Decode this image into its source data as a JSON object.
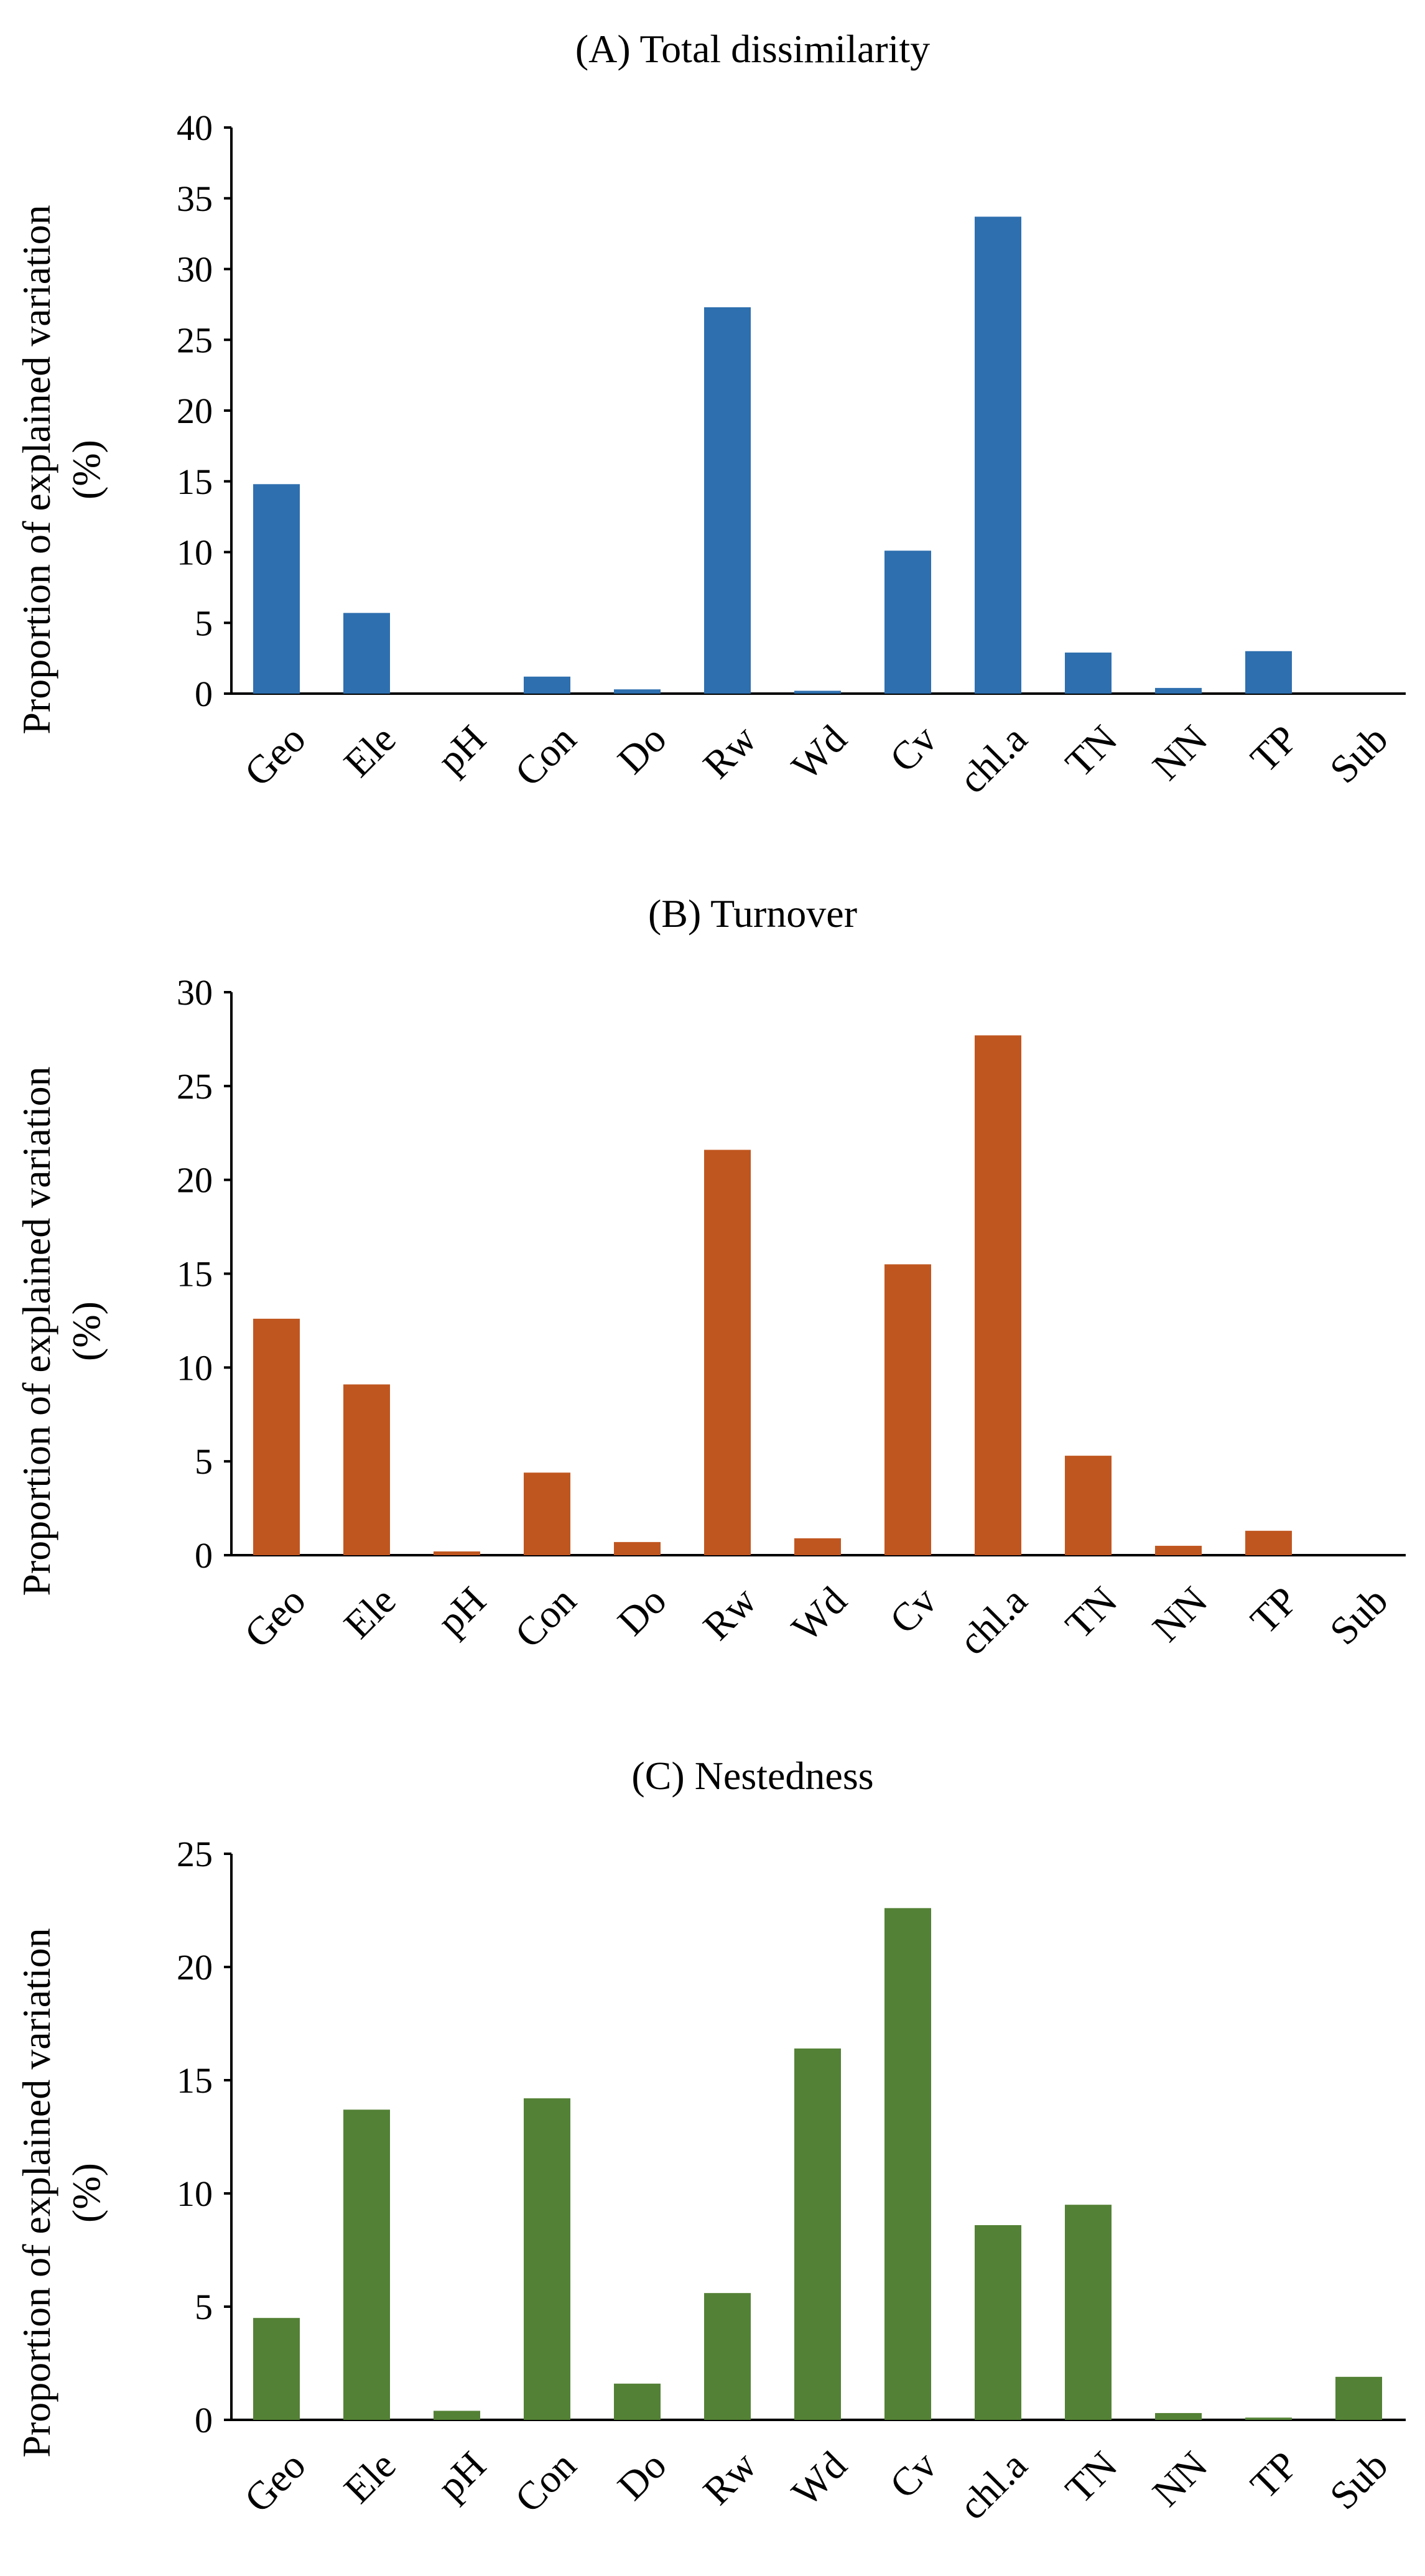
{
  "chart_data": [
    {
      "type": "bar",
      "title": "(A) Total dissimilarity",
      "ylabel_line1": "Proportion of explained variation",
      "ylabel_line2": "(%)",
      "xlabel": "",
      "categories": [
        "Geo",
        "Ele",
        "pH",
        "Con",
        "Do",
        "Rw",
        "Wd",
        "Cv",
        "chl.a",
        "TN",
        "NN",
        "TP",
        "Sub"
      ],
      "values": [
        14.8,
        5.7,
        0.0,
        1.2,
        0.3,
        27.3,
        0.2,
        10.1,
        33.7,
        2.9,
        0.4,
        3.0,
        0.0
      ],
      "ylim": [
        0,
        40
      ],
      "yticks": [
        0,
        5,
        10,
        15,
        20,
        25,
        30,
        35,
        40
      ],
      "color": "#2E6FAF",
      "grid": false,
      "legend": "none"
    },
    {
      "type": "bar",
      "title": "(B) Turnover",
      "ylabel_line1": "Proportion of explained variation",
      "ylabel_line2": "(%)",
      "xlabel": "",
      "categories": [
        "Geo",
        "Ele",
        "pH",
        "Con",
        "Do",
        "Rw",
        "Wd",
        "Cv",
        "chl.a",
        "TN",
        "NN",
        "TP",
        "Sub"
      ],
      "values": [
        12.6,
        9.1,
        0.2,
        4.4,
        0.7,
        21.6,
        0.9,
        15.5,
        27.7,
        5.3,
        0.5,
        1.3,
        0.0
      ],
      "ylim": [
        0,
        30
      ],
      "yticks": [
        0,
        5,
        10,
        15,
        20,
        25,
        30
      ],
      "color": "#C0561F",
      "grid": false,
      "legend": "none"
    },
    {
      "type": "bar",
      "title": "(C) Nestedness",
      "ylabel_line1": "Proportion of explained variation",
      "ylabel_line2": "(%)",
      "xlabel": "",
      "categories": [
        "Geo",
        "Ele",
        "pH",
        "Con",
        "Do",
        "Rw",
        "Wd",
        "Cv",
        "chl.a",
        "TN",
        "NN",
        "TP",
        "Sub"
      ],
      "values": [
        4.5,
        13.7,
        0.4,
        14.2,
        1.6,
        5.6,
        16.4,
        22.6,
        8.6,
        9.5,
        0.3,
        0.1,
        1.9
      ],
      "ylim": [
        0,
        25
      ],
      "yticks": [
        0,
        5,
        10,
        15,
        20,
        25
      ],
      "color": "#538135",
      "grid": false,
      "legend": "none"
    }
  ]
}
